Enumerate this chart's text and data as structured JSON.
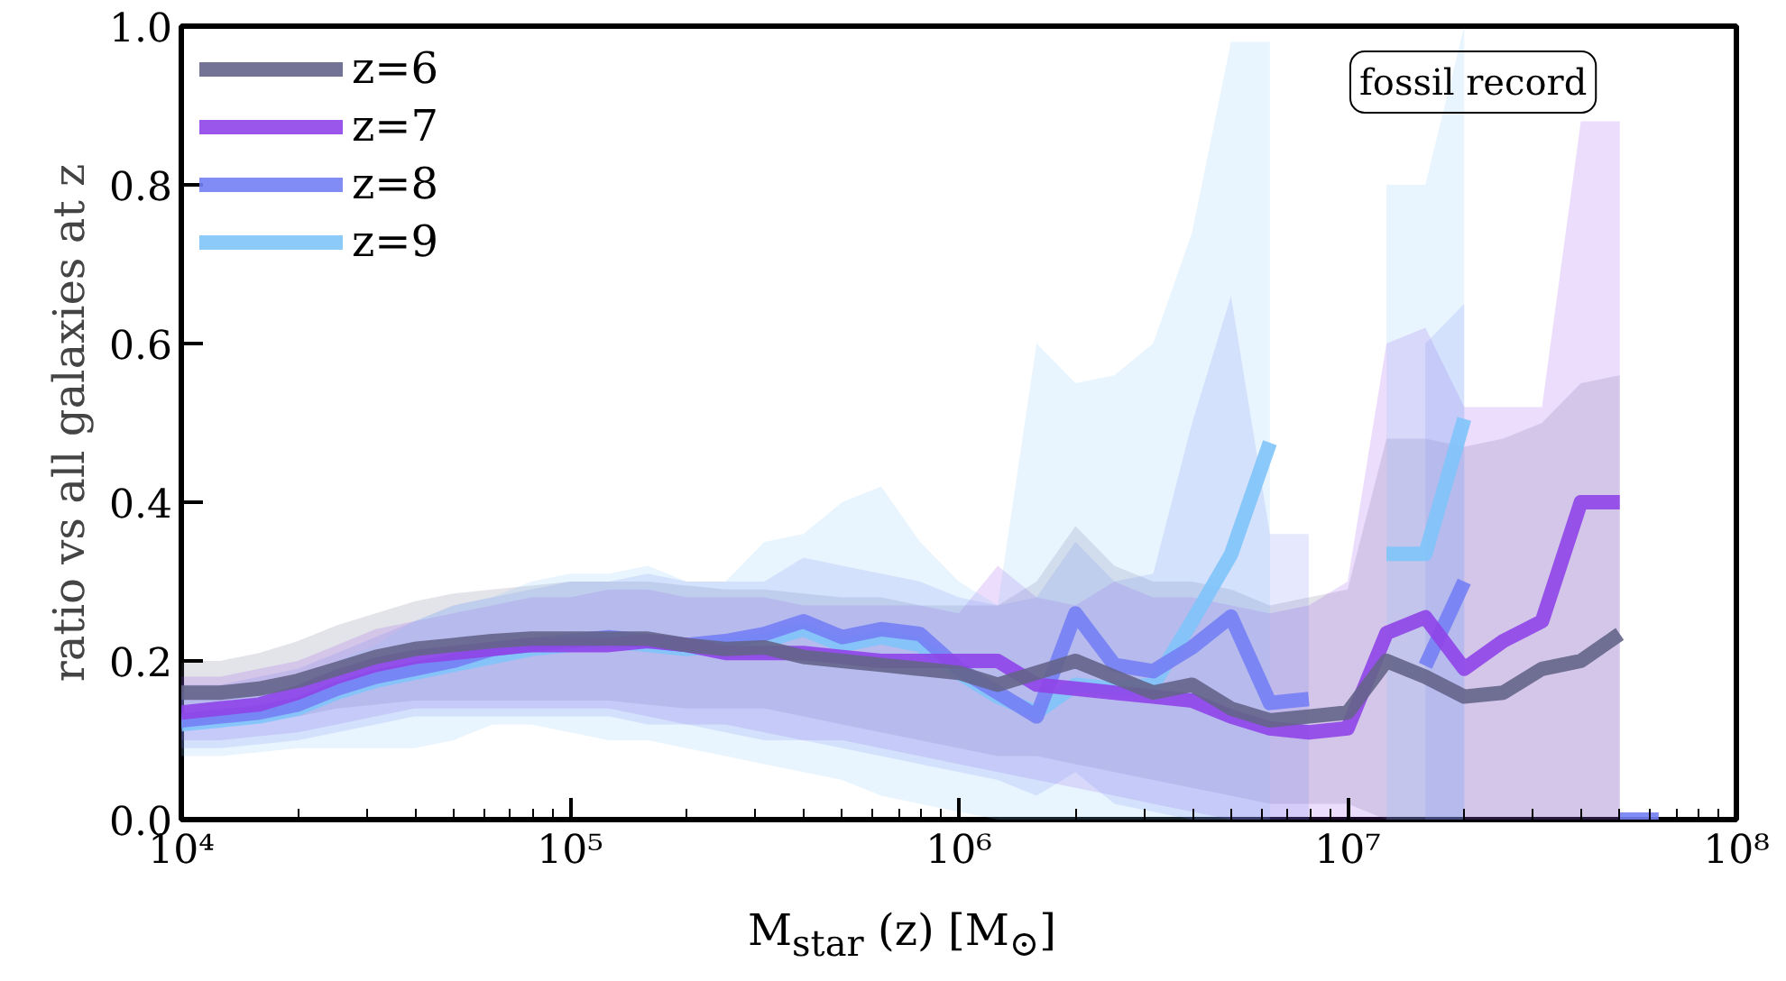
{
  "chart_data": {
    "type": "line",
    "xlabel": "M$_{star}$ (z) [M$_{⊙}$]",
    "ylabel": "ratio vs all galaxies at z",
    "log": "x",
    "legend": "top left",
    "xlim": [
      10000.0,
      100000000.0
    ],
    "xticks": [
      {
        "value": 10000.0,
        "label": "10⁴"
      },
      {
        "value": 100000.0,
        "label": "10⁵"
      },
      {
        "value": 1000000.0,
        "label": "10⁶"
      },
      {
        "value": 10000000.0,
        "label": "10⁷"
      },
      {
        "value": 100000000.0,
        "label": "10⁸"
      }
    ],
    "ylim": [
      0,
      1
    ],
    "yticks": [
      {
        "value": 0,
        "label": "0.0"
      },
      0.2,
      0.4,
      0.6,
      0.8,
      {
        "value": 1,
        "label": "1.0"
      }
    ],
    "annotations": [
      "fossil record"
    ],
    "series": [
      {
        "name": "z=6",
        "color": "#64648a",
        "x": [
          10000.0,
          12590.0,
          15850.0,
          19950.0,
          25120.0,
          31620.0,
          39810.0,
          50120.0,
          63100.0,
          79430.0,
          100000.0,
          125900.0,
          158500.0,
          199500.0,
          251200.0,
          316200.0,
          398100.0,
          501200.0,
          631000.0,
          794300.0,
          1000000.0,
          1259000.0,
          1585000.0,
          1995000.0,
          2512000.0,
          3162000.0,
          3981000.0,
          5012000.0,
          6310000.0,
          7943000.0,
          10000000.0,
          12590000.0,
          15850000.0,
          19950000.0,
          25120000.0,
          31620000.0,
          39810000.0,
          50120000.0
        ],
        "values": [
          0.16,
          0.16,
          0.165,
          0.175,
          0.19,
          0.205,
          0.215,
          0.22,
          0.225,
          0.228,
          0.228,
          0.228,
          0.228,
          0.22,
          0.215,
          0.217,
          0.205,
          0.2,
          0.195,
          0.19,
          0.185,
          0.17,
          0.185,
          0.2,
          0.18,
          0.16,
          0.17,
          0.14,
          0.125,
          0.13,
          0.135,
          0.2,
          0.18,
          0.155,
          0.16,
          0.19,
          0.2,
          0.234
        ],
        "upper": [
          0.2,
          0.2,
          0.21,
          0.225,
          0.245,
          0.26,
          0.275,
          0.285,
          0.29,
          0.295,
          0.3,
          0.3,
          0.3,
          0.295,
          0.29,
          0.29,
          0.285,
          0.28,
          0.28,
          0.27,
          0.27,
          0.27,
          0.3,
          0.37,
          0.32,
          0.3,
          0.3,
          0.29,
          0.27,
          0.28,
          0.29,
          0.48,
          0.48,
          0.47,
          0.48,
          0.5,
          0.55,
          0.56
        ],
        "lower": [
          0.12,
          0.12,
          0.125,
          0.13,
          0.14,
          0.145,
          0.15,
          0.15,
          0.15,
          0.15,
          0.15,
          0.15,
          0.145,
          0.14,
          0.14,
          0.14,
          0.13,
          0.12,
          0.11,
          0.1,
          0.09,
          0.08,
          0.08,
          0.07,
          0.06,
          0.05,
          0.04,
          0.03,
          0.02,
          0.02,
          0.02,
          0,
          0,
          0,
          0,
          0,
          0,
          0
        ]
      },
      {
        "name": "z=7",
        "color": "#8f44e8",
        "x": [
          10000.0,
          12590.0,
          15850.0,
          19950.0,
          25120.0,
          31620.0,
          39810.0,
          50120.0,
          63100.0,
          79430.0,
          100000.0,
          125900.0,
          158500.0,
          199500.0,
          251200.0,
          316200.0,
          398100.0,
          501200.0,
          631000.0,
          794300.0,
          1000000.0,
          1259000.0,
          1585000.0,
          1995000.0,
          2512000.0,
          3162000.0,
          3981000.0,
          5012000.0,
          6310000.0,
          7943000.0,
          10000000.0,
          12590000.0,
          15850000.0,
          19950000.0,
          25120000.0,
          31620000.0,
          39810000.0,
          50120000.0
        ],
        "values": [
          0.135,
          0.14,
          0.145,
          0.16,
          0.18,
          0.195,
          0.205,
          0.21,
          0.215,
          0.22,
          0.22,
          0.22,
          0.225,
          0.22,
          0.21,
          0.21,
          0.21,
          0.205,
          0.2,
          0.2,
          0.2,
          0.2,
          0.17,
          0.165,
          0.16,
          0.155,
          0.15,
          0.13,
          0.115,
          0.11,
          0.115,
          0.235,
          0.255,
          0.19,
          0.225,
          0.25,
          0.4,
          0.4
        ],
        "upper": [
          0.18,
          0.18,
          0.19,
          0.2,
          0.22,
          0.24,
          0.25,
          0.26,
          0.27,
          0.28,
          0.28,
          0.29,
          0.29,
          0.28,
          0.28,
          0.28,
          0.27,
          0.27,
          0.27,
          0.27,
          0.26,
          0.32,
          0.28,
          0.27,
          0.3,
          0.28,
          0.28,
          0.27,
          0.26,
          0.27,
          0.3,
          0.6,
          0.62,
          0.52,
          0.52,
          0.52,
          0.88,
          0.88
        ],
        "lower": [
          0.1,
          0.1,
          0.105,
          0.11,
          0.12,
          0.13,
          0.14,
          0.14,
          0.14,
          0.14,
          0.14,
          0.14,
          0.13,
          0.12,
          0.12,
          0.11,
          0.1,
          0.1,
          0.09,
          0.08,
          0.07,
          0.06,
          0.05,
          0.04,
          0.03,
          0.02,
          0.01,
          0,
          0,
          0,
          0,
          0,
          0,
          0,
          0,
          0,
          0,
          0
        ]
      },
      {
        "name": "z=8",
        "color": "#7480f4",
        "x": [
          10000.0,
          12590.0,
          15850.0,
          19950.0,
          25120.0,
          31620.0,
          39810.0,
          50120.0,
          63100.0,
          79430.0,
          100000.0,
          125900.0,
          158500.0,
          199500.0,
          251200.0,
          316200.0,
          398100.0,
          501200.0,
          631000.0,
          794300.0,
          1000000.0,
          1259000.0,
          1585000.0,
          1995000.0,
          2512000.0,
          3162000.0,
          3981000.0,
          5012000.0,
          6310000.0,
          7943000.0,
          10000000.0,
          15850000.0,
          19950000.0,
          31620000.0,
          50120000.0,
          63100000.0
        ],
        "values": [
          0.125,
          0.13,
          0.135,
          0.145,
          0.165,
          0.18,
          0.19,
          0.2,
          0.215,
          0.22,
          0.225,
          0.23,
          0.225,
          0.22,
          0.225,
          0.234,
          0.25,
          0.23,
          0.24,
          0.234,
          0.19,
          0.16,
          0.13,
          0.26,
          0.195,
          0.187,
          0.217,
          0.256,
          0.147,
          0.152,
          null,
          0.194,
          0.3,
          null,
          0,
          0
        ],
        "upper": [
          0.17,
          0.17,
          0.18,
          0.19,
          0.21,
          0.23,
          0.25,
          0.27,
          0.28,
          0.29,
          0.3,
          0.3,
          0.31,
          0.3,
          0.3,
          0.3,
          0.33,
          0.32,
          0.31,
          0.3,
          0.28,
          0.27,
          0.28,
          0.35,
          0.3,
          0.31,
          0.5,
          0.66,
          0.36,
          0.36,
          null,
          0.6,
          0.65,
          null,
          null,
          null
        ],
        "lower": [
          0.09,
          0.09,
          0.095,
          0.1,
          0.11,
          0.12,
          0.13,
          0.13,
          0.13,
          0.13,
          0.13,
          0.13,
          0.12,
          0.12,
          0.11,
          0.1,
          0.1,
          0.09,
          0.08,
          0.07,
          0.06,
          0.05,
          0.03,
          0.06,
          0.02,
          0.01,
          0,
          0,
          0,
          0,
          null,
          0,
          0,
          null,
          null,
          null
        ]
      },
      {
        "name": "z=9",
        "color": "#80c4fa",
        "x": [
          10000.0,
          12590.0,
          15850.0,
          19950.0,
          25120.0,
          31620.0,
          39810.0,
          50120.0,
          63100.0,
          79430.0,
          100000.0,
          125900.0,
          158500.0,
          199500.0,
          251200.0,
          316200.0,
          398100.0,
          501200.0,
          631000.0,
          794300.0,
          1000000.0,
          1259000.0,
          1585000.0,
          1995000.0,
          2512000.0,
          3162000.0,
          3981000.0,
          5012000.0,
          6310000.0,
          10000000.0,
          12590000.0,
          15850000.0,
          19950000.0
        ],
        "values": [
          0.12,
          0.125,
          0.13,
          0.14,
          0.16,
          0.175,
          0.185,
          0.195,
          0.205,
          0.215,
          0.22,
          0.225,
          0.22,
          0.215,
          0.22,
          0.225,
          0.24,
          0.22,
          0.23,
          0.22,
          0.185,
          0.155,
          0.135,
          0.17,
          0.165,
          0.17,
          0.25,
          0.334,
          0.475,
          null,
          0.335,
          0.335,
          0.505
        ],
        "upper": [
          0.16,
          0.16,
          0.17,
          0.18,
          0.2,
          0.22,
          0.25,
          0.27,
          0.28,
          0.3,
          0.31,
          0.31,
          0.32,
          0.3,
          0.3,
          0.35,
          0.36,
          0.4,
          0.42,
          0.35,
          0.3,
          0.27,
          0.6,
          0.55,
          0.56,
          0.6,
          0.74,
          0.98,
          0.98,
          null,
          0.8,
          0.8,
          1.0
        ],
        "lower": [
          0.08,
          0.08,
          0.085,
          0.09,
          0.09,
          0.09,
          0.09,
          0.1,
          0.12,
          0.12,
          0.11,
          0.1,
          0.1,
          0.09,
          0.08,
          0.07,
          0.06,
          0.05,
          0.03,
          0.02,
          0.01,
          0,
          0,
          0,
          0,
          0,
          0,
          0,
          0,
          null,
          0,
          0,
          0
        ]
      }
    ]
  }
}
